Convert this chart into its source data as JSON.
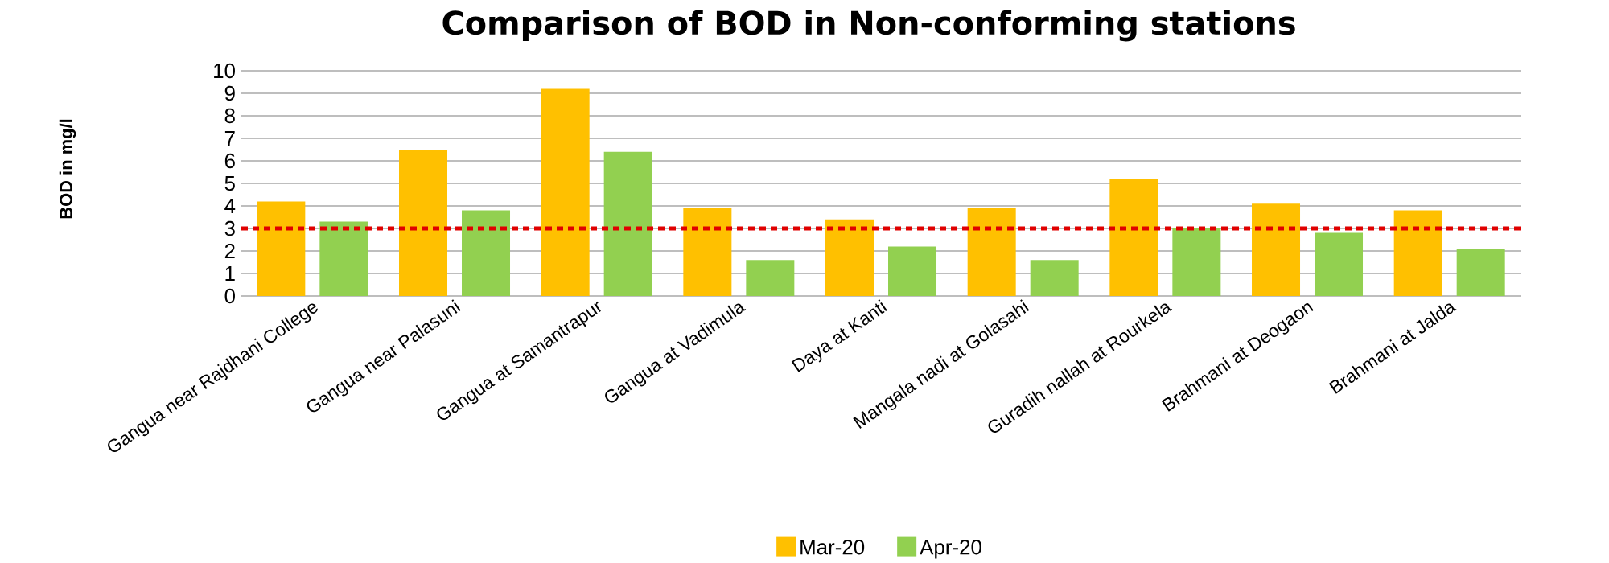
{
  "chart_data": {
    "type": "bar",
    "title": "Comparison of BOD in Non-conforming stations",
    "ylabel": "BOD in mg/l",
    "categories": [
      "Gangua near Rajdhani College",
      "Gangua near Palasuni",
      "Gangua at Samantrapur",
      "Gangua at Vadimula",
      "Daya at Kanti",
      "Mangala nadi at Golasahi",
      "Guradih nallah at Rourkela",
      "Brahmani at Deogaon",
      "Brahmani at Jalda"
    ],
    "series": [
      {
        "name": "Mar-20",
        "color": "#ffc000",
        "values": [
          4.2,
          6.5,
          9.2,
          3.9,
          3.4,
          3.9,
          5.2,
          4.1,
          3.8
        ]
      },
      {
        "name": "Apr-20",
        "color": "#92d050",
        "values": [
          3.3,
          3.8,
          6.4,
          1.6,
          2.2,
          1.6,
          3.0,
          2.8,
          2.1
        ]
      }
    ],
    "ylim": [
      0,
      10
    ],
    "yticks": [
      0,
      1,
      2,
      3,
      4,
      5,
      6,
      7,
      8,
      9,
      10
    ],
    "grid": "y",
    "legend": "bottom",
    "ref_lines": [
      {
        "axis": "y",
        "value": 3,
        "color": "#e00000",
        "line_style": "dotted"
      }
    ]
  }
}
